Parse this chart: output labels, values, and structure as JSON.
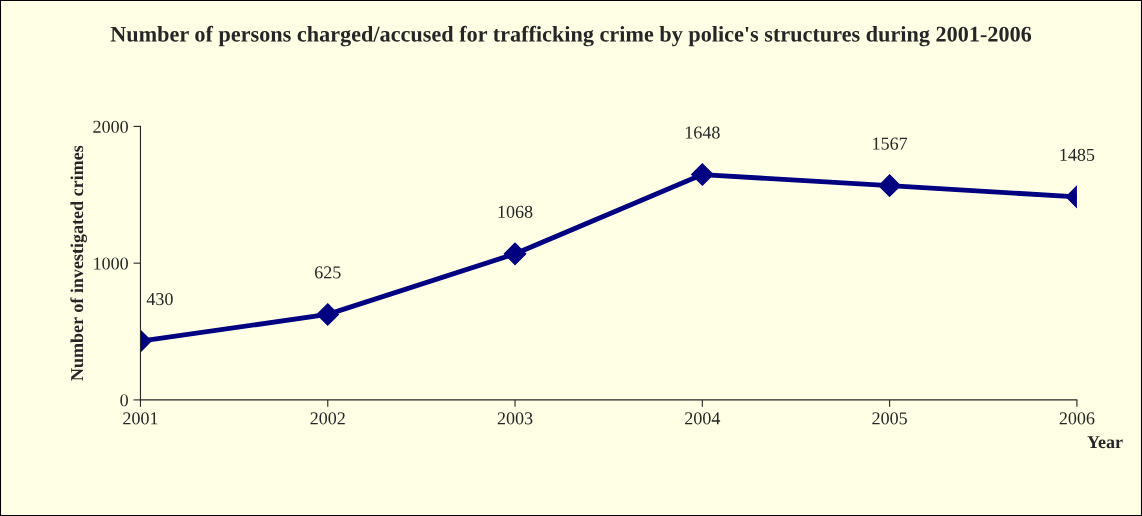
{
  "chart_data": {
    "type": "line",
    "title": "Number of persons charged/accused for trafficking crime by police's structures during 2001-2006",
    "xlabel": "Year",
    "ylabel": "Number of investigated crimes",
    "x": [
      2001,
      2002,
      2003,
      2004,
      2005,
      2006
    ],
    "series": [
      {
        "color": "#000080",
        "values": [
          430,
          625,
          1068,
          1648,
          1567,
          1485
        ]
      }
    ],
    "xlim": [
      2001,
      2006
    ],
    "xticks": [
      2001,
      2002,
      2003,
      2004,
      2005,
      2006
    ],
    "ylim": [
      0,
      2000
    ],
    "yticks": [
      0,
      1000,
      2000
    ],
    "marker": "diamond",
    "line_style": "solid",
    "data_labels": true,
    "grid": false,
    "legend": false
  }
}
